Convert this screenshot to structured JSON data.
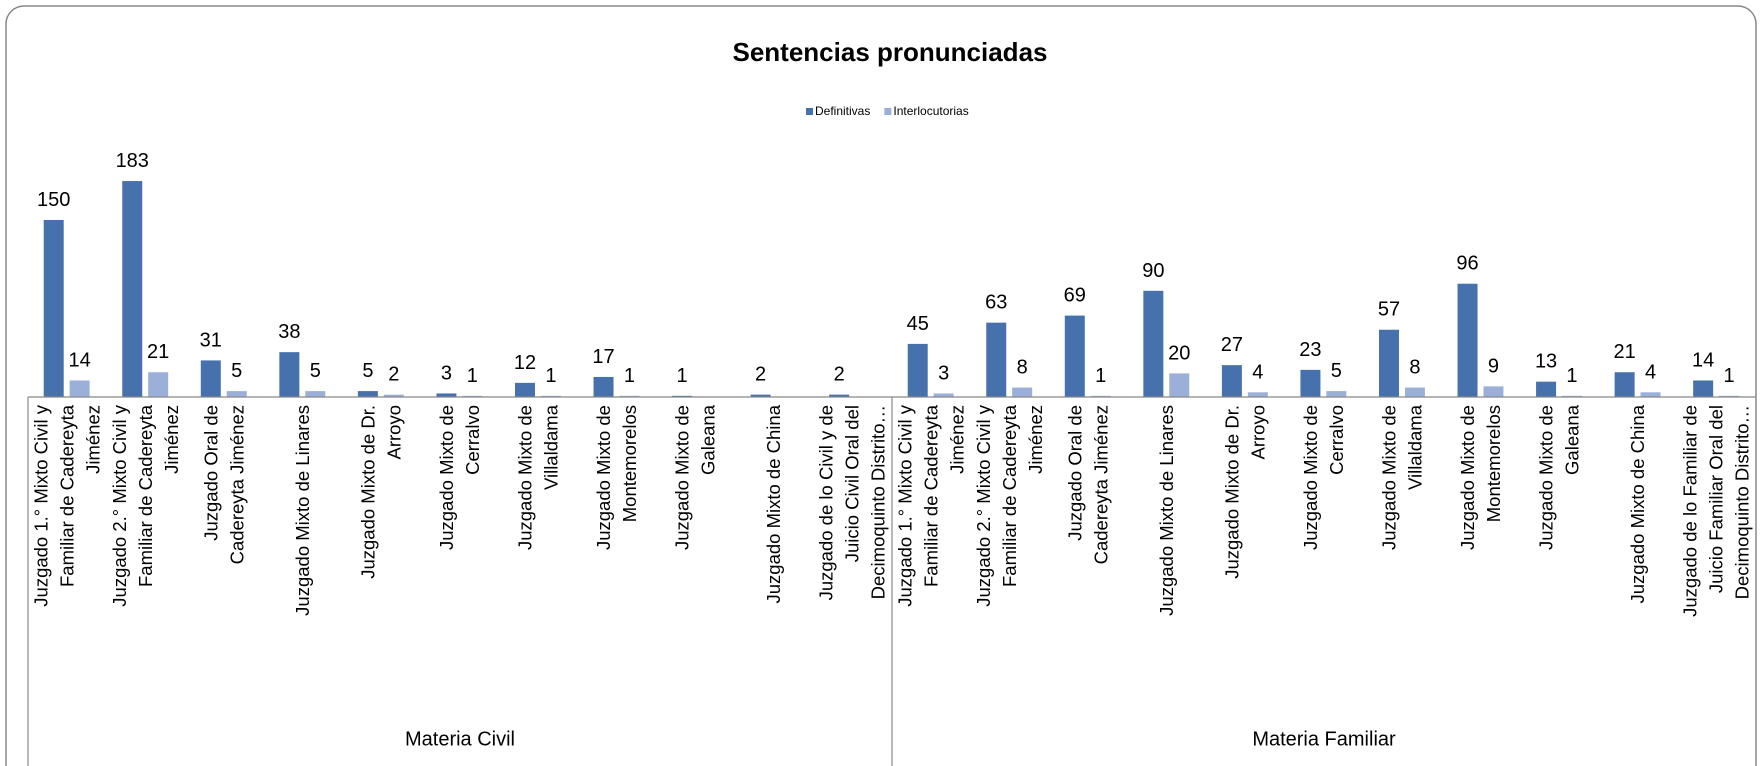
{
  "chart_data": {
    "type": "bar",
    "title": "Sentencias pronunciadas",
    "groups": [
      {
        "label": "Materia Civil",
        "categories": [
          "Juzgado 1.° Mixto Civil y\nFamiliar de Cadereyta\nJiménez",
          "Juzgado 2.° Mixto Civil y\nFamiliar de Cadereyta\nJiménez",
          "Juzgado Oral de\nCadereyta Jiménez",
          "Juzgado Mixto de Linares",
          "Juzgado Mixto de Dr.\nArroyo",
          "Juzgado Mixto de\nCerralvo",
          "Juzgado Mixto de\nVillaldama",
          "Juzgado Mixto de\nMontemorelos",
          "Juzgado Mixto de\nGaleana",
          "Juzgado Mixto de China",
          "Juzgado de lo Civil y de\nJuicio Civil Oral del\nDecimoquinto Distrito…"
        ]
      },
      {
        "label": "Materia Familiar",
        "categories": [
          "Juzgado 1.° Mixto Civil y\nFamiliar de Cadereyta\nJiménez",
          "Juzgado 2.° Mixto Civil y\nFamiliar de Cadereyta\nJiménez",
          "Juzgado Oral de\nCadereyta Jiménez",
          "Juzgado Mixto de Linares",
          "Juzgado Mixto de Dr.\nArroyo",
          "Juzgado Mixto de\nCerralvo",
          "Juzgado Mixto de\nVillaldama",
          "Juzgado Mixto de\nMontemorelos",
          "Juzgado Mixto de\nGaleana",
          "Juzgado Mixto de China",
          "Juzgado de lo Familiar de\nJuicio Familiar Oral del\nDecimoquinto Distrito…"
        ]
      }
    ],
    "series": [
      {
        "name": "Definitivas",
        "color": "#4671ad",
        "values": [
          150,
          183,
          31,
          38,
          5,
          3,
          12,
          17,
          1,
          2,
          2,
          45,
          63,
          69,
          90,
          27,
          23,
          57,
          96,
          13,
          21,
          14
        ]
      },
      {
        "name": "Interlocutorias",
        "color": "#9bb0d9",
        "values": [
          14,
          21,
          5,
          5,
          2,
          1,
          1,
          1,
          null,
          null,
          null,
          3,
          8,
          1,
          20,
          4,
          5,
          8,
          9,
          1,
          4,
          1
        ]
      }
    ],
    "ylim": [
      0,
      200
    ],
    "legend": "top"
  }
}
